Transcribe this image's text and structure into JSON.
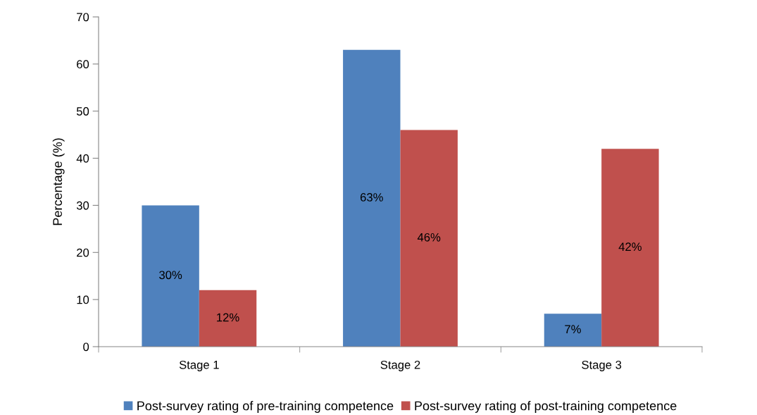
{
  "chart_data": {
    "type": "bar",
    "ylabel": "Percentage (%)",
    "categories": [
      "Stage 1",
      "Stage 2",
      "Stage 3"
    ],
    "series": [
      {
        "name": "Post-survey rating of pre-training competence",
        "color": "#4f81bd",
        "values": [
          30,
          63,
          7
        ],
        "value_labels": [
          "30%",
          "63%",
          "7%"
        ]
      },
      {
        "name": "Post-survey rating of post-training competence",
        "color": "#c0504d",
        "values": [
          12,
          46,
          42
        ],
        "value_labels": [
          "12%",
          "46%",
          "42%"
        ]
      }
    ],
    "ylim": [
      0,
      70
    ],
    "yticks": [
      0,
      10,
      20,
      30,
      40,
      50,
      60,
      70
    ],
    "grid": false,
    "legend": "bottom"
  }
}
